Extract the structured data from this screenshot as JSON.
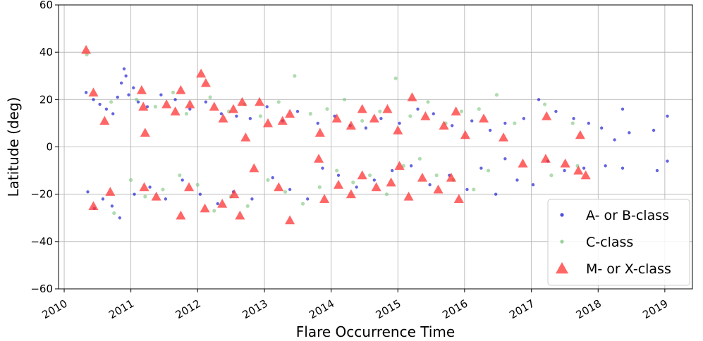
{
  "chart_data": {
    "type": "scatter",
    "title": "",
    "xlabel": "Flare Occurrence Time",
    "ylabel": "Latitude (deg)",
    "x_axis": "date",
    "xlim": [
      "2009-12-01",
      "2019-06-01"
    ],
    "ylim": [
      -60,
      60
    ],
    "x_ticks": [
      "2010-01-01",
      "2011-01-01",
      "2012-01-01",
      "2013-01-01",
      "2014-01-01",
      "2015-01-01",
      "2016-01-01",
      "2017-01-01",
      "2018-01-01",
      "2019-01-01"
    ],
    "x_tick_labels": [
      "2010",
      "2011",
      "2012",
      "2013",
      "2014",
      "2015",
      "2016",
      "2017",
      "2018",
      "2019"
    ],
    "y_ticks": [
      -60,
      -40,
      -20,
      0,
      20,
      40,
      60
    ],
    "y_tick_labels": [
      "−60",
      "−40",
      "−20",
      "0",
      "20",
      "40",
      "60"
    ],
    "grid": true,
    "legend_position": "bottom-right",
    "series": [
      {
        "name": "A- or B-class",
        "color": "#0000cc",
        "marker": "dot",
        "points": [
          [
            "2010-05-01",
            23
          ],
          [
            "2010-06-10",
            20
          ],
          [
            "2010-07-15",
            18
          ],
          [
            "2010-08-20",
            16
          ],
          [
            "2010-09-25",
            14
          ],
          [
            "2010-10-20",
            21
          ],
          [
            "2010-11-10",
            27
          ],
          [
            "2010-11-25",
            33
          ],
          [
            "2010-12-05",
            30
          ],
          [
            "2010-12-20",
            22
          ],
          [
            "2011-01-15",
            25
          ],
          [
            "2011-02-10",
            19
          ],
          [
            "2011-04-01",
            17
          ],
          [
            "2011-06-15",
            22
          ],
          [
            "2011-09-01",
            20
          ],
          [
            "2011-11-20",
            16
          ],
          [
            "2012-02-15",
            19
          ],
          [
            "2012-05-10",
            14
          ],
          [
            "2012-08-01",
            13
          ],
          [
            "2012-10-15",
            12
          ],
          [
            "2013-01-15",
            17
          ],
          [
            "2013-04-10",
            11
          ],
          [
            "2013-07-01",
            15
          ],
          [
            "2013-10-20",
            10
          ],
          [
            "2014-01-20",
            13
          ],
          [
            "2014-04-15",
            9
          ],
          [
            "2014-07-10",
            8
          ],
          [
            "2014-10-01",
            12
          ],
          [
            "2015-01-10",
            10
          ],
          [
            "2015-04-20",
            16
          ],
          [
            "2015-07-15",
            14
          ],
          [
            "2015-10-25",
            9
          ],
          [
            "2016-02-10",
            11
          ],
          [
            "2016-05-20",
            7
          ],
          [
            "2016-08-10",
            10
          ],
          [
            "2016-11-20",
            12
          ],
          [
            "2017-02-10",
            20
          ],
          [
            "2017-05-15",
            15
          ],
          [
            "2017-08-20",
            12
          ],
          [
            "2017-11-10",
            10
          ],
          [
            "2018-01-20",
            8
          ],
          [
            "2018-04-01",
            3
          ],
          [
            "2018-05-15",
            16
          ],
          [
            "2018-06-20",
            6
          ],
          [
            "2018-11-01",
            7
          ],
          [
            "2019-01-15",
            13
          ],
          [
            "2010-05-10",
            -19
          ],
          [
            "2010-06-15",
            -26
          ],
          [
            "2010-08-01",
            -22
          ],
          [
            "2010-09-20",
            -25
          ],
          [
            "2010-11-01",
            -30
          ],
          [
            "2011-01-20",
            -20
          ],
          [
            "2011-04-15",
            -17
          ],
          [
            "2011-07-10",
            -22
          ],
          [
            "2011-10-10",
            -14
          ],
          [
            "2012-01-15",
            -20
          ],
          [
            "2012-04-20",
            -24
          ],
          [
            "2012-07-15",
            -19
          ],
          [
            "2012-10-25",
            -22
          ],
          [
            "2013-02-15",
            -13
          ],
          [
            "2013-05-20",
            -18
          ],
          [
            "2013-08-25",
            -22
          ],
          [
            "2013-11-15",
            -9
          ],
          [
            "2014-02-10",
            -12
          ],
          [
            "2014-05-20",
            -17
          ],
          [
            "2014-08-25",
            -14
          ],
          [
            "2014-12-01",
            -10
          ],
          [
            "2015-03-15",
            -8
          ],
          [
            "2015-06-25",
            -16
          ],
          [
            "2015-10-10",
            -12
          ],
          [
            "2016-01-15",
            -18
          ],
          [
            "2016-04-01",
            -9
          ],
          [
            "2016-06-20",
            -20
          ],
          [
            "2016-08-10",
            -5
          ],
          [
            "2016-10-15",
            -14
          ],
          [
            "2017-01-10",
            -16
          ],
          [
            "2017-04-01",
            -6
          ],
          [
            "2017-07-01",
            -10
          ],
          [
            "2017-10-15",
            -9
          ],
          [
            "2018-02-10",
            -8
          ],
          [
            "2018-05-15",
            -9
          ],
          [
            "2018-11-20",
            -10
          ],
          [
            "2019-01-15",
            -6
          ]
        ]
      },
      {
        "name": "C-class",
        "color": "#6fbf6f",
        "marker": "dot",
        "points": [
          [
            "2010-05-05",
            39
          ],
          [
            "2010-09-15",
            19
          ],
          [
            "2011-02-01",
            20
          ],
          [
            "2011-05-15",
            17
          ],
          [
            "2011-08-20",
            23
          ],
          [
            "2011-11-01",
            14
          ],
          [
            "2012-03-10",
            21
          ],
          [
            "2012-06-20",
            15
          ],
          [
            "2012-09-15",
            18
          ],
          [
            "2012-12-10",
            13
          ],
          [
            "2013-03-20",
            19
          ],
          [
            "2013-06-15",
            30
          ],
          [
            "2013-09-10",
            14
          ],
          [
            "2013-12-10",
            16
          ],
          [
            "2014-03-15",
            20
          ],
          [
            "2014-06-20",
            11
          ],
          [
            "2014-09-25",
            15
          ],
          [
            "2014-12-20",
            29
          ],
          [
            "2015-03-10",
            13
          ],
          [
            "2015-06-15",
            19
          ],
          [
            "2015-09-20",
            10
          ],
          [
            "2015-12-15",
            15
          ],
          [
            "2016-03-20",
            16
          ],
          [
            "2016-06-25",
            22
          ],
          [
            "2016-10-01",
            10
          ],
          [
            "2017-03-15",
            18
          ],
          [
            "2017-08-15",
            10
          ],
          [
            "2010-10-01",
            -28
          ],
          [
            "2011-01-01",
            -14
          ],
          [
            "2011-03-20",
            -21
          ],
          [
            "2011-06-25",
            -18
          ],
          [
            "2011-09-25",
            -12
          ],
          [
            "2012-01-01",
            -16
          ],
          [
            "2012-04-01",
            -27
          ],
          [
            "2012-07-01",
            -21
          ],
          [
            "2012-10-01",
            -25
          ],
          [
            "2013-01-20",
            -14
          ],
          [
            "2013-04-25",
            -19
          ],
          [
            "2013-07-30",
            -24
          ],
          [
            "2013-10-30",
            -17
          ],
          [
            "2014-02-01",
            -10
          ],
          [
            "2014-05-01",
            -15
          ],
          [
            "2014-08-01",
            -12
          ],
          [
            "2014-11-01",
            -20
          ],
          [
            "2015-02-01",
            -8
          ],
          [
            "2015-05-01",
            -5
          ],
          [
            "2015-08-01",
            -12
          ],
          [
            "2015-11-01",
            -14
          ],
          [
            "2016-02-20",
            -18
          ],
          [
            "2016-05-10",
            -10
          ],
          [
            "2017-04-20",
            -12
          ],
          [
            "2017-09-10",
            -8
          ]
        ]
      },
      {
        "name": "M- or X-class",
        "color": "#ff3333",
        "marker": "triangle",
        "points": [
          [
            "2010-05-01",
            41
          ],
          [
            "2010-06-10",
            23
          ],
          [
            "2010-08-10",
            11
          ],
          [
            "2011-03-01",
            24
          ],
          [
            "2011-03-10",
            17
          ],
          [
            "2011-03-20",
            6
          ],
          [
            "2011-07-15",
            18
          ],
          [
            "2011-09-01",
            15
          ],
          [
            "2011-10-01",
            24
          ],
          [
            "2011-11-20",
            18
          ],
          [
            "2012-01-20",
            31
          ],
          [
            "2012-02-15",
            27
          ],
          [
            "2012-04-01",
            17
          ],
          [
            "2012-05-20",
            12
          ],
          [
            "2012-07-15",
            16
          ],
          [
            "2012-09-01",
            19
          ],
          [
            "2012-09-20",
            4
          ],
          [
            "2012-12-05",
            19
          ],
          [
            "2013-01-20",
            10
          ],
          [
            "2013-04-10",
            11
          ],
          [
            "2013-05-20",
            14
          ],
          [
            "2013-11-01",
            6
          ],
          [
            "2014-02-01",
            12
          ],
          [
            "2014-04-20",
            9
          ],
          [
            "2014-06-20",
            16
          ],
          [
            "2014-08-25",
            12
          ],
          [
            "2014-11-05",
            16
          ],
          [
            "2015-01-01",
            7
          ],
          [
            "2015-03-20",
            21
          ],
          [
            "2015-06-01",
            13
          ],
          [
            "2015-09-10",
            9
          ],
          [
            "2015-11-15",
            15
          ],
          [
            "2016-01-05",
            5
          ],
          [
            "2016-04-15",
            12
          ],
          [
            "2016-08-01",
            4
          ],
          [
            "2017-03-25",
            13
          ],
          [
            "2017-09-25",
            5
          ],
          [
            "2010-06-10",
            -25
          ],
          [
            "2010-09-10",
            -19
          ],
          [
            "2011-03-15",
            -17
          ],
          [
            "2011-05-20",
            -21
          ],
          [
            "2011-10-01",
            -29
          ],
          [
            "2011-11-15",
            -17
          ],
          [
            "2012-02-10",
            -26
          ],
          [
            "2012-05-15",
            -24
          ],
          [
            "2012-07-20",
            -20
          ],
          [
            "2012-08-20",
            -29
          ],
          [
            "2012-11-05",
            -9
          ],
          [
            "2013-03-20",
            -17
          ],
          [
            "2013-05-20",
            -31
          ],
          [
            "2013-10-25",
            -5
          ],
          [
            "2013-11-25",
            -22
          ],
          [
            "2014-02-10",
            -16
          ],
          [
            "2014-04-20",
            -20
          ],
          [
            "2014-06-20",
            -12
          ],
          [
            "2014-09-05",
            -17
          ],
          [
            "2014-11-25",
            -15
          ],
          [
            "2015-01-10",
            -8
          ],
          [
            "2015-03-01",
            -21
          ],
          [
            "2015-05-15",
            -13
          ],
          [
            "2015-08-10",
            -18
          ],
          [
            "2015-10-20",
            -13
          ],
          [
            "2015-12-01",
            -22
          ],
          [
            "2016-11-15",
            -7
          ],
          [
            "2017-03-20",
            -5
          ],
          [
            "2017-07-05",
            -7
          ],
          [
            "2017-09-15",
            -10
          ],
          [
            "2017-10-25",
            -12
          ]
        ]
      }
    ]
  }
}
